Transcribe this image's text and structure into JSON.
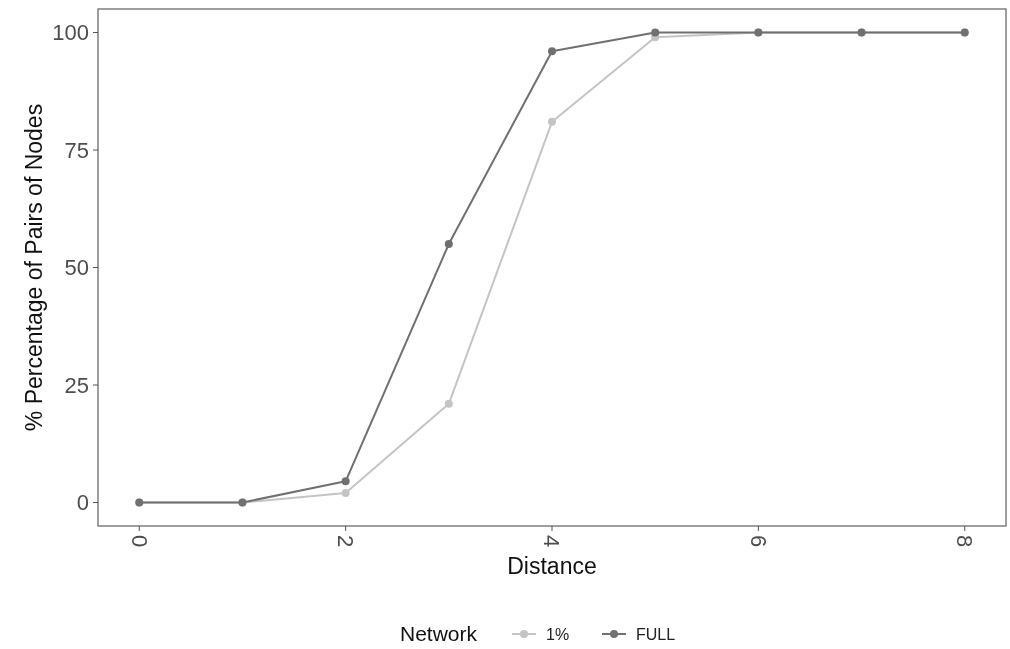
{
  "chart_data": {
    "type": "line",
    "xlabel": "Distance",
    "ylabel": "% Percentage of Pairs of Nodes",
    "legend_title": "Network",
    "x": [
      0,
      1,
      2,
      3,
      4,
      5,
      6,
      7,
      8
    ],
    "series": [
      {
        "name": "1%",
        "color": "#c4c4c4",
        "values": [
          0,
          0,
          2,
          21,
          81,
          99,
          100,
          100,
          100
        ]
      },
      {
        "name": "FULL",
        "color": "#707070",
        "values": [
          0,
          0,
          4.5,
          55,
          96,
          100,
          100,
          100,
          100
        ]
      }
    ],
    "xlim": [
      -0.4,
      8.4
    ],
    "ylim": [
      -5,
      105
    ],
    "xticks": [
      0,
      2,
      4,
      6,
      8
    ],
    "yticks": [
      0,
      25,
      50,
      75,
      100
    ],
    "grid": false,
    "legend": "bottom",
    "marker": "circle",
    "line_style": "solid"
  }
}
